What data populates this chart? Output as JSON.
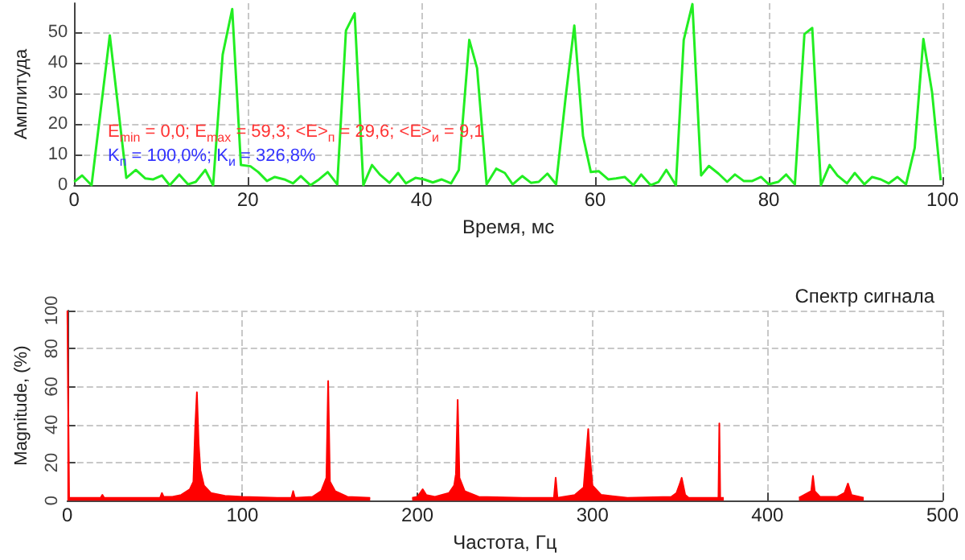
{
  "chart_data": [
    {
      "type": "line",
      "xlabel": "Время, мс",
      "ylabel": "Амплитуда",
      "xlim": [
        0,
        100
      ],
      "xticks": [
        0,
        20,
        40,
        60,
        80,
        100
      ],
      "ylim": [
        0,
        59.5
      ],
      "yticks": [
        0,
        10,
        20,
        30,
        40,
        50
      ],
      "grid": true,
      "marker": "none",
      "annotations": [
        "E$_{min}$ = 0,0; E$_{max}$ = 59,3; <E>$_{п}$ = 29,6; <E>$_{и}$ = 9,1",
        "K$_{п}$ = 100,0%; K$_{и}$ = 326,8%"
      ],
      "x": [
        0,
        0.9,
        2.0,
        4.1,
        6.0,
        7.1,
        8.2,
        9.1,
        10.1,
        11.0,
        12.1,
        13.1,
        14.0,
        15.1,
        16.0,
        17.1,
        18.2,
        19.2,
        20.3,
        21.2,
        22.2,
        23.1,
        24.2,
        25.2,
        26.1,
        27.2,
        28.2,
        29.2,
        30.3,
        31.3,
        32.3,
        33.3,
        34.3,
        35.2,
        36.3,
        37.3,
        38.2,
        39.3,
        40.3,
        41.3,
        42.3,
        43.4,
        44.3,
        45.5,
        46.4,
        47.5,
        48.6,
        49.6,
        50.5,
        51.6,
        52.6,
        53.5,
        54.5,
        55.5,
        56.6,
        57.6,
        58.6,
        59.5,
        60.4,
        61.5,
        62.4,
        63.4,
        64.4,
        65.3,
        66.4,
        67.3,
        68.2,
        69.3,
        70.2,
        71.2,
        72.2,
        73.1,
        74.2,
        75.2,
        76.1,
        77.1,
        78.1,
        79.1,
        80.0,
        81.1,
        82.0,
        83.0,
        84.1,
        85.0,
        86.0,
        87.0,
        87.9,
        89.0,
        89.9,
        91.0,
        91.9,
        92.9,
        93.8,
        94.8,
        95.8,
        96.8,
        97.8,
        98.8,
        99.8
      ],
      "series": [
        {
          "color": "#22ee22",
          "values": [
            1.1,
            3.2,
            0,
            49,
            2.4,
            5,
            2.2,
            1.9,
            3.2,
            0,
            3.5,
            0.3,
            1.1,
            5,
            0,
            42.7,
            57.6,
            6.6,
            6.2,
            4.3,
            1.4,
            2.7,
            1.9,
            0.6,
            3.0,
            0,
            1.9,
            4.3,
            0.3,
            50.6,
            56.2,
            0,
            6.6,
            3.5,
            0.8,
            4.0,
            0.6,
            2.4,
            1.9,
            0.9,
            1.9,
            0.6,
            5,
            47.5,
            38.3,
            0.3,
            5.4,
            4.0,
            0.3,
            3.0,
            0.8,
            1.1,
            3.8,
            0.3,
            28.8,
            52.2,
            16.1,
            4.3,
            4.6,
            1.9,
            2.2,
            2.7,
            0,
            3.5,
            0,
            1.1,
            5,
            0,
            47.5,
            59.2,
            3.2,
            6.3,
            3.8,
            1.1,
            3.5,
            1.4,
            1.4,
            2.7,
            0.3,
            1.1,
            3.5,
            0.3,
            49.4,
            51.4,
            0,
            6.6,
            3.2,
            0.6,
            4.0,
            0.3,
            2.7,
            1.9,
            0.6,
            2.7,
            0.3,
            12.2,
            47.8,
            30.4,
            1.6
          ]
        }
      ]
    },
    {
      "type": "area",
      "title": "Спектр сигнала",
      "xlabel": "Частота, Гц",
      "ylabel": "Magnitude, (%)",
      "xlim": [
        0,
        500
      ],
      "xticks": [
        0,
        100,
        200,
        300,
        400,
        500
      ],
      "ylim": [
        0,
        100
      ],
      "yticks": [
        0,
        20,
        40,
        60,
        80,
        100
      ],
      "grid": true,
      "x": [
        0,
        1,
        19,
        20,
        21,
        53,
        54,
        55,
        60,
        65,
        70,
        72,
        73,
        74,
        75,
        76,
        78,
        82,
        90,
        100,
        120,
        128,
        129,
        130,
        140,
        145,
        148,
        149,
        150,
        153,
        160,
        173,
        174,
        197,
        200,
        203,
        205,
        210,
        218,
        221,
        222,
        223,
        224,
        227,
        235,
        260,
        278,
        279,
        280,
        290,
        295,
        297.6,
        298.5,
        300,
        305,
        320,
        345,
        348,
        350,
        351,
        353,
        355,
        370,
        372,
        372.5,
        373,
        375,
        376,
        418,
        425,
        426,
        427,
        430,
        440,
        444,
        446,
        448,
        455
      ],
      "series": [
        {
          "color": "#ff0000",
          "values": [
            100,
            1.5,
            1.5,
            3,
            1.5,
            1.5,
            4,
            2,
            2,
            3,
            6,
            10,
            38,
            57,
            30,
            16,
            8,
            4,
            2.5,
            2,
            1.5,
            1.5,
            5,
            1.5,
            2,
            5,
            12,
            63,
            10,
            5,
            2,
            1.5,
            null,
            1.5,
            2,
            6,
            3,
            2,
            4,
            8,
            14,
            53,
            12,
            5,
            2,
            1.5,
            1.5,
            12,
            1.5,
            3,
            7,
            37.7,
            24,
            8,
            3,
            1.5,
            2,
            4,
            9,
            12,
            3,
            1.5,
            1.5,
            1.5,
            40.6,
            1.5,
            1.5,
            null,
            1.5,
            5,
            13,
            5,
            2,
            2,
            4,
            9,
            3,
            1.5
          ]
        }
      ]
    }
  ]
}
